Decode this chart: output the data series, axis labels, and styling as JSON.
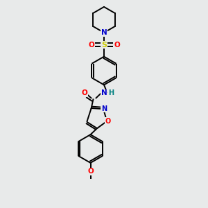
{
  "background_color": "#e8eaea",
  "bond_color": "#000000",
  "figsize": [
    3.0,
    3.0
  ],
  "dpi": 100,
  "colors": {
    "N": "#0000cc",
    "O": "#ff0000",
    "S": "#cccc00",
    "H": "#008080",
    "C": "#000000"
  },
  "lw": 1.4,
  "fs": 7.5
}
